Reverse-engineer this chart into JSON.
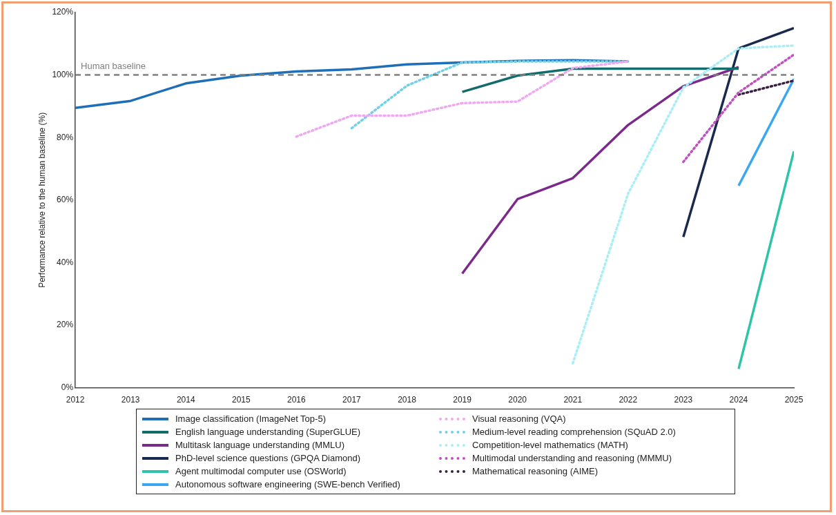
{
  "chart_data": {
    "type": "line",
    "ylabel": "Performance relative to the human baseline (%)",
    "xlim": [
      2012,
      2025
    ],
    "xticks": [
      2012,
      2013,
      2014,
      2015,
      2016,
      2017,
      2018,
      2019,
      2020,
      2021,
      2022,
      2023,
      2024,
      2025
    ],
    "ylim": [
      0,
      120
    ],
    "yticks": [
      {
        "value": 0,
        "label": "0%"
      },
      {
        "value": 20,
        "label": "20%"
      },
      {
        "value": 40,
        "label": "40%"
      },
      {
        "value": 60,
        "label": "60%"
      },
      {
        "value": 80,
        "label": "80%"
      },
      {
        "value": 100,
        "label": "100%"
      },
      {
        "value": 120,
        "label": "120%"
      }
    ],
    "grid": false,
    "legend": "bottom",
    "marker": "none",
    "ref_lines": [
      {
        "axis": "y",
        "value": 100,
        "label": "Human baseline",
        "color": "#7f7f7f",
        "line_style": "dashed"
      }
    ],
    "series": [
      {
        "name": "Image classification (ImageNet Top-5)",
        "color": "#1f6fb8",
        "line_style": "solid",
        "x": [
          2012,
          2013,
          2014,
          2015,
          2016,
          2017,
          2018,
          2019,
          2020,
          2021,
          2022
        ],
        "values": [
          89.5,
          91.7,
          97.3,
          99.8,
          101.1,
          101.8,
          103.4,
          104,
          104.5,
          104.7,
          104.3
        ]
      },
      {
        "name": "English language understanding (SuperGLUE)",
        "color": "#136b6b",
        "line_style": "solid",
        "x": [
          2019,
          2020,
          2021,
          2022,
          2023,
          2024
        ],
        "values": [
          94.6,
          99.8,
          102,
          102,
          102,
          102
        ]
      },
      {
        "name": "Multitask language understanding (MMLU)",
        "color": "#7b2a8c",
        "line_style": "solid",
        "x": [
          2019,
          2020,
          2021,
          2022,
          2023,
          2024
        ],
        "values": [
          36.5,
          60.3,
          67,
          84,
          96.4,
          102.5
        ]
      },
      {
        "name": "PhD-level science questions (GPQA Diamond)",
        "color": "#1a2a4f",
        "line_style": "solid",
        "x": [
          2023,
          2024,
          2025
        ],
        "values": [
          48.2,
          108.5,
          115
        ]
      },
      {
        "name": "Agent multimodal computer use (OSWorld)",
        "color": "#2ec4a8",
        "line_style": "solid",
        "x": [
          2024,
          2025
        ],
        "values": [
          6,
          75.6
        ]
      },
      {
        "name": "Autonomous software engineering (SWE-bench Verified)",
        "color": "#3aa8f0",
        "line_style": "solid",
        "x": [
          2024,
          2025
        ],
        "values": [
          64.6,
          98.7
        ]
      },
      {
        "name": "Visual reasoning (VQA)",
        "color": "#f0a8f0",
        "line_style": "dotted",
        "x": [
          2016,
          2017,
          2018,
          2019,
          2020,
          2021,
          2022
        ],
        "values": [
          80.3,
          87,
          87,
          91,
          91.5,
          102.2,
          104.3
        ]
      },
      {
        "name": "Medium-level reading comprehension (SQuAD 2.0)",
        "color": "#6fd0e8",
        "line_style": "dotted",
        "x": [
          2017,
          2018,
          2019,
          2020,
          2021,
          2022
        ],
        "values": [
          83,
          96.6,
          104,
          104.3,
          104.3,
          104.3
        ]
      },
      {
        "name": "Competition-level mathematics (MATH)",
        "color": "#a8eef4",
        "line_style": "dotted",
        "x": [
          2021,
          2022,
          2023,
          2024,
          2025
        ],
        "values": [
          7.8,
          62,
          96,
          108.5,
          109.4
        ]
      },
      {
        "name": "Multimodal understanding and reasoning (MMMU)",
        "color": "#c050c0",
        "line_style": "dotted",
        "x": [
          2023,
          2024,
          2025
        ],
        "values": [
          72.2,
          94.4,
          106.5
        ]
      },
      {
        "name": "Mathematical reasoning (AIME)",
        "color": "#3a2040",
        "line_style": "dotted",
        "x": [
          2024,
          2025
        ],
        "values": [
          93.7,
          98.2
        ]
      }
    ]
  }
}
